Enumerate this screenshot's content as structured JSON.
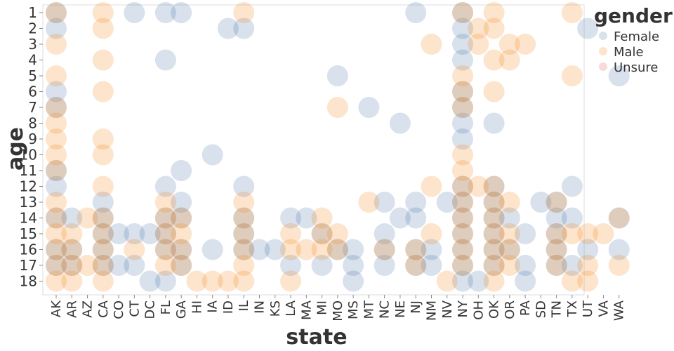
{
  "chart_data": {
    "type": "scatter",
    "xlabel": "state",
    "ylabel": "age",
    "categories": [
      "AK",
      "AR",
      "AZ",
      "CA",
      "CO",
      "CT",
      "DC",
      "FL",
      "GA",
      "HI",
      "IA",
      "ID",
      "IL",
      "IN",
      "KS",
      "LA",
      "MA",
      "MI",
      "MO",
      "MS",
      "MT",
      "NC",
      "NE",
      "NJ",
      "NM",
      "NV",
      "NY",
      "OH",
      "OK",
      "OR",
      "PA",
      "SD",
      "TN",
      "TX",
      "UT",
      "VA",
      "WA"
    ],
    "y_ticks": [
      "1",
      "2",
      "3",
      "4",
      "5",
      "6",
      "7",
      "8",
      "9",
      "10",
      "11",
      "12",
      "13",
      "14",
      "15",
      "16",
      "17",
      "18"
    ],
    "ylim": [
      1,
      18
    ],
    "grid": false,
    "legend": {
      "title": "gender",
      "placement": "top-right",
      "items": [
        {
          "name": "Female",
          "color": "#4c78a8"
        },
        {
          "name": "Male",
          "color": "#f58518"
        },
        {
          "name": "Unsure",
          "color": "#e45756"
        }
      ]
    },
    "series": [
      {
        "name": "Female",
        "color": "#4c78a8",
        "points": [
          [
            "AK",
            1
          ],
          [
            "AK",
            2
          ],
          [
            "AK",
            6
          ],
          [
            "AK",
            7
          ],
          [
            "AK",
            11
          ],
          [
            "AK",
            12
          ],
          [
            "AK",
            14
          ],
          [
            "AK",
            16
          ],
          [
            "AK",
            17
          ],
          [
            "AR",
            14
          ],
          [
            "AR",
            16
          ],
          [
            "AR",
            17
          ],
          [
            "CA",
            13
          ],
          [
            "CA",
            14
          ],
          [
            "CA",
            15
          ],
          [
            "CA",
            16
          ],
          [
            "CA",
            17
          ],
          [
            "CO",
            15
          ],
          [
            "CO",
            17
          ],
          [
            "CT",
            1
          ],
          [
            "CT",
            15
          ],
          [
            "CT",
            17
          ],
          [
            "DC",
            15
          ],
          [
            "DC",
            18
          ],
          [
            "FL",
            1
          ],
          [
            "FL",
            4
          ],
          [
            "FL",
            12
          ],
          [
            "FL",
            14
          ],
          [
            "FL",
            15
          ],
          [
            "FL",
            16
          ],
          [
            "FL",
            18
          ],
          [
            "GA",
            1
          ],
          [
            "GA",
            11
          ],
          [
            "GA",
            13
          ],
          [
            "GA",
            14
          ],
          [
            "GA",
            16
          ],
          [
            "GA",
            17
          ],
          [
            "IA",
            10
          ],
          [
            "IA",
            16
          ],
          [
            "ID",
            2
          ],
          [
            "IL",
            2
          ],
          [
            "IL",
            12
          ],
          [
            "IL",
            14
          ],
          [
            "IL",
            15
          ],
          [
            "IL",
            16
          ],
          [
            "IN",
            16
          ],
          [
            "KS",
            16
          ],
          [
            "LA",
            14
          ],
          [
            "LA",
            17
          ],
          [
            "MA",
            14
          ],
          [
            "MI",
            15
          ],
          [
            "MI",
            17
          ],
          [
            "MO",
            5
          ],
          [
            "MO",
            16
          ],
          [
            "MS",
            16
          ],
          [
            "MS",
            17
          ],
          [
            "MS",
            18
          ],
          [
            "MT",
            7
          ],
          [
            "NC",
            13
          ],
          [
            "NC",
            15
          ],
          [
            "NC",
            16
          ],
          [
            "NC",
            17
          ],
          [
            "NE",
            8
          ],
          [
            "NE",
            14
          ],
          [
            "NJ",
            1
          ],
          [
            "NJ",
            13
          ],
          [
            "NJ",
            14
          ],
          [
            "NJ",
            16
          ],
          [
            "NJ",
            17
          ],
          [
            "NM",
            16
          ],
          [
            "NM",
            17
          ],
          [
            "NV",
            13
          ],
          [
            "NY",
            1
          ],
          [
            "NY",
            2
          ],
          [
            "NY",
            3
          ],
          [
            "NY",
            4
          ],
          [
            "NY",
            6
          ],
          [
            "NY",
            7
          ],
          [
            "NY",
            8
          ],
          [
            "NY",
            9
          ],
          [
            "NY",
            12
          ],
          [
            "NY",
            13
          ],
          [
            "NY",
            14
          ],
          [
            "NY",
            15
          ],
          [
            "NY",
            16
          ],
          [
            "NY",
            17
          ],
          [
            "NY",
            18
          ],
          [
            "OH",
            18
          ],
          [
            "OK",
            8
          ],
          [
            "OK",
            12
          ],
          [
            "OK",
            13
          ],
          [
            "OK",
            14
          ],
          [
            "OK",
            15
          ],
          [
            "OK",
            16
          ],
          [
            "OK",
            17
          ],
          [
            "OR",
            14
          ],
          [
            "OR",
            16
          ],
          [
            "PA",
            15
          ],
          [
            "PA",
            17
          ],
          [
            "PA",
            18
          ],
          [
            "SD",
            13
          ],
          [
            "TN",
            13
          ],
          [
            "TN",
            14
          ],
          [
            "TN",
            15
          ],
          [
            "TN",
            16
          ],
          [
            "TN",
            17
          ],
          [
            "TX",
            12
          ],
          [
            "TX",
            14
          ],
          [
            "TX",
            17
          ],
          [
            "UT",
            2
          ],
          [
            "UT",
            16
          ],
          [
            "WA",
            5
          ],
          [
            "WA",
            14
          ],
          [
            "WA",
            16
          ]
        ]
      },
      {
        "name": "Male",
        "color": "#f58518",
        "points": [
          [
            "AK",
            1
          ],
          [
            "AK",
            3
          ],
          [
            "AK",
            5
          ],
          [
            "AK",
            7
          ],
          [
            "AK",
            8
          ],
          [
            "AK",
            9
          ],
          [
            "AK",
            10
          ],
          [
            "AK",
            11
          ],
          [
            "AK",
            13
          ],
          [
            "AK",
            14
          ],
          [
            "AK",
            15
          ],
          [
            "AK",
            16
          ],
          [
            "AK",
            17
          ],
          [
            "AK",
            18
          ],
          [
            "AR",
            15
          ],
          [
            "AR",
            16
          ],
          [
            "AR",
            17
          ],
          [
            "AR",
            18
          ],
          [
            "AZ",
            14
          ],
          [
            "AZ",
            17
          ],
          [
            "CA",
            1
          ],
          [
            "CA",
            2
          ],
          [
            "CA",
            4
          ],
          [
            "CA",
            6
          ],
          [
            "CA",
            9
          ],
          [
            "CA",
            10
          ],
          [
            "CA",
            12
          ],
          [
            "CA",
            14
          ],
          [
            "CA",
            15
          ],
          [
            "CA",
            16
          ],
          [
            "CA",
            17
          ],
          [
            "CA",
            18
          ],
          [
            "CT",
            16
          ],
          [
            "FL",
            13
          ],
          [
            "FL",
            14
          ],
          [
            "FL",
            15
          ],
          [
            "FL",
            16
          ],
          [
            "FL",
            17
          ],
          [
            "GA",
            14
          ],
          [
            "GA",
            15
          ],
          [
            "GA",
            16
          ],
          [
            "GA",
            17
          ],
          [
            "HI",
            18
          ],
          [
            "IA",
            18
          ],
          [
            "ID",
            18
          ],
          [
            "IL",
            1
          ],
          [
            "IL",
            13
          ],
          [
            "IL",
            14
          ],
          [
            "IL",
            15
          ],
          [
            "IL",
            16
          ],
          [
            "IL",
            17
          ],
          [
            "IL",
            18
          ],
          [
            "LA",
            15
          ],
          [
            "LA",
            16
          ],
          [
            "LA",
            18
          ],
          [
            "MA",
            16
          ],
          [
            "MI",
            14
          ],
          [
            "MI",
            15
          ],
          [
            "MI",
            16
          ],
          [
            "MO",
            7
          ],
          [
            "MO",
            15
          ],
          [
            "MO",
            16
          ],
          [
            "MT",
            13
          ],
          [
            "NC",
            16
          ],
          [
            "NJ",
            16
          ],
          [
            "NJ",
            17
          ],
          [
            "NM",
            3
          ],
          [
            "NM",
            12
          ],
          [
            "NM",
            15
          ],
          [
            "NV",
            18
          ],
          [
            "NY",
            1
          ],
          [
            "NY",
            5
          ],
          [
            "NY",
            6
          ],
          [
            "NY",
            7
          ],
          [
            "NY",
            10
          ],
          [
            "NY",
            11
          ],
          [
            "NY",
            12
          ],
          [
            "NY",
            13
          ],
          [
            "NY",
            14
          ],
          [
            "NY",
            15
          ],
          [
            "NY",
            16
          ],
          [
            "NY",
            17
          ],
          [
            "OH",
            2
          ],
          [
            "OH",
            3
          ],
          [
            "OH",
            12
          ],
          [
            "OK",
            1
          ],
          [
            "OK",
            2
          ],
          [
            "OK",
            4
          ],
          [
            "OK",
            6
          ],
          [
            "OK",
            12
          ],
          [
            "OK",
            13
          ],
          [
            "OK",
            14
          ],
          [
            "OK",
            15
          ],
          [
            "OK",
            16
          ],
          [
            "OK",
            17
          ],
          [
            "OK",
            18
          ],
          [
            "OR",
            3
          ],
          [
            "OR",
            4
          ],
          [
            "OR",
            13
          ],
          [
            "OR",
            15
          ],
          [
            "OR",
            16
          ],
          [
            "OR",
            17
          ],
          [
            "PA",
            3
          ],
          [
            "TN",
            13
          ],
          [
            "TN",
            15
          ],
          [
            "TN",
            16
          ],
          [
            "TN",
            17
          ],
          [
            "TX",
            1
          ],
          [
            "TX",
            5
          ],
          [
            "TX",
            15
          ],
          [
            "TX",
            18
          ],
          [
            "UT",
            15
          ],
          [
            "UT",
            17
          ],
          [
            "UT",
            18
          ],
          [
            "VA",
            15
          ],
          [
            "WA",
            14
          ],
          [
            "WA",
            17
          ]
        ]
      },
      {
        "name": "Unsure",
        "color": "#e45756",
        "points": []
      }
    ]
  }
}
